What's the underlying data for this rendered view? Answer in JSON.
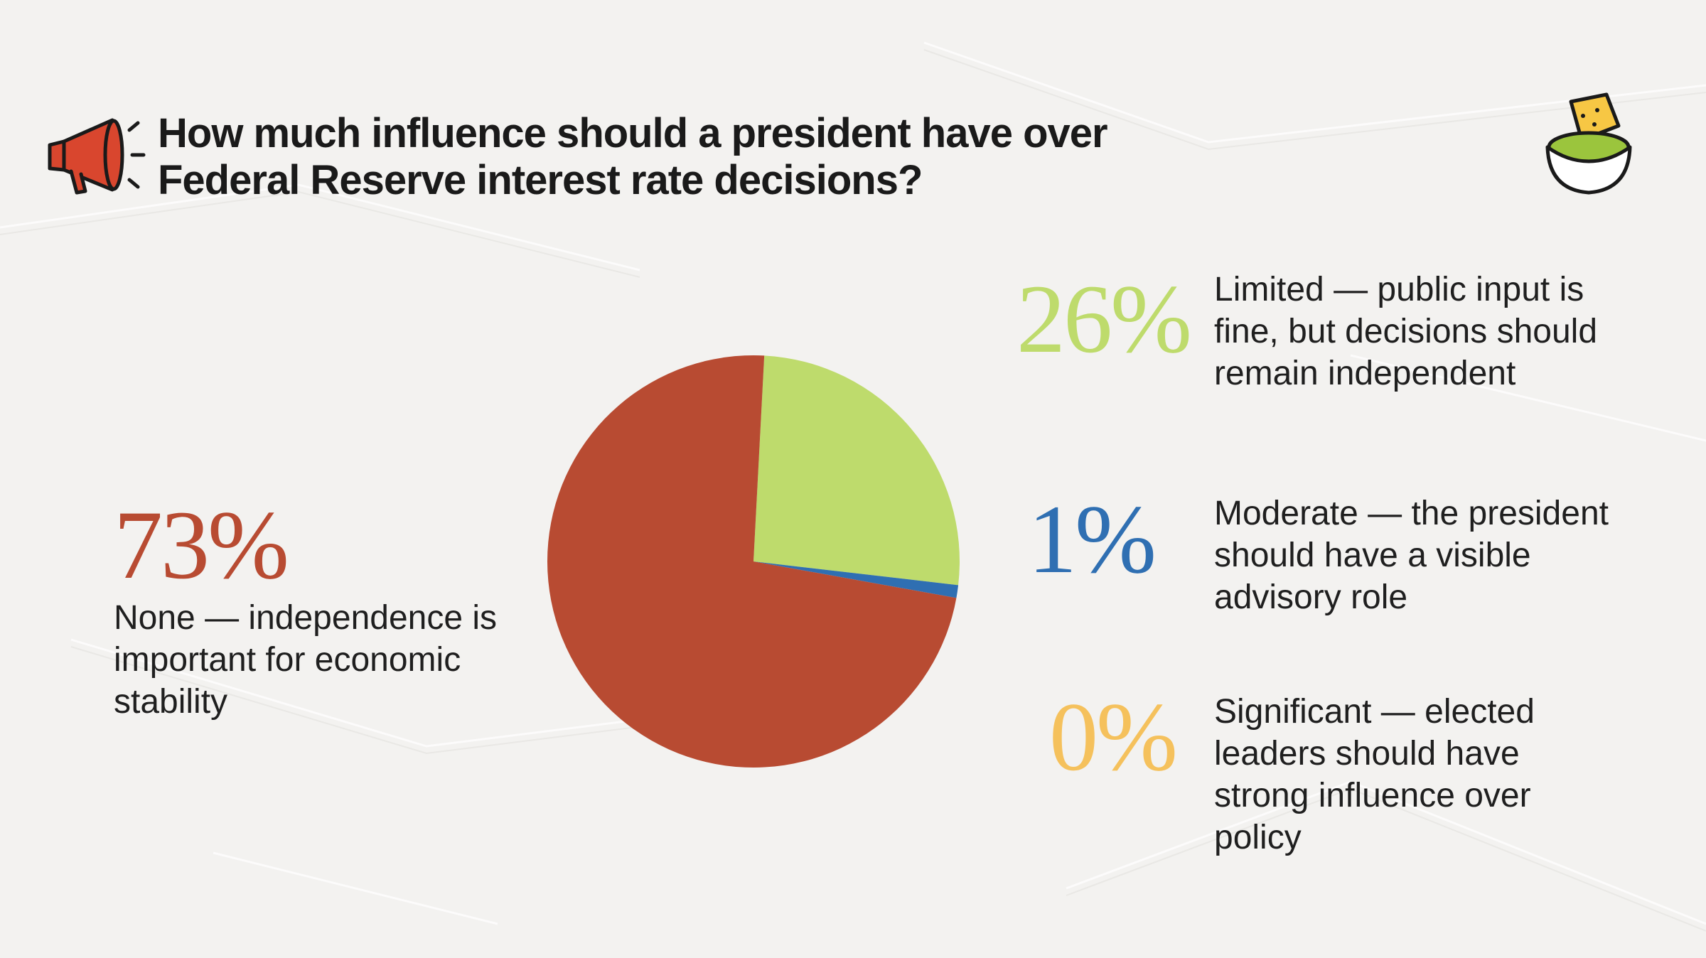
{
  "title": "How much influence should a president have over Federal Reserve interest rate decisions?",
  "icons": {
    "left": "megaphone-icon",
    "right": "guacamole-bowl-icon"
  },
  "colors": {
    "background": "#f3f2f0",
    "none": "#b84b32",
    "limited": "#bedb6c",
    "moderate": "#2f6fb2",
    "significant": "#f5c15c"
  },
  "chart_data": {
    "type": "pie",
    "title": "How much influence should a president have over Federal Reserve interest rate decisions?",
    "slices": [
      {
        "key": "limited",
        "label": "Limited — public input is fine, but decisions should remain independent",
        "value": 26,
        "display": "26%"
      },
      {
        "key": "moderate",
        "label": "Moderate — the president should have a visible advisory role",
        "value": 1,
        "display": "1%"
      },
      {
        "key": "none",
        "label": "None — independence is important for economic stability",
        "value": 73,
        "display": "73%"
      },
      {
        "key": "significant",
        "label": "Significant — elected leaders should have strong influence over policy",
        "value": 0,
        "display": "0%"
      }
    ]
  }
}
